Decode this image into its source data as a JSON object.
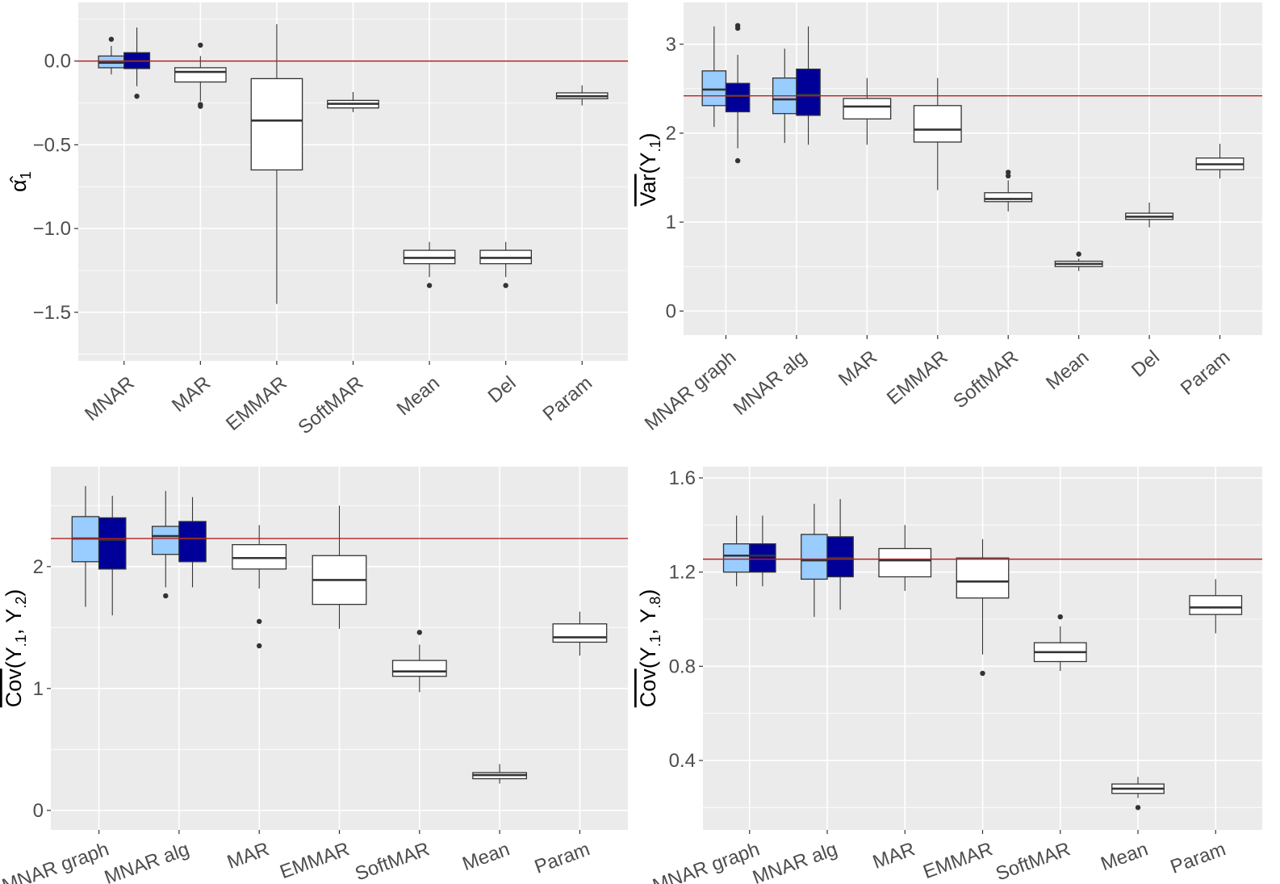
{
  "colors": {
    "panel_bg": "#ebebeb",
    "grid": "#ffffff",
    "reference_line": "#b22222",
    "mnar_light": "#99ccff",
    "mnar_dark": "#000099",
    "other": "#ffffff",
    "box_stroke": "#333333"
  },
  "chart_data": [
    {
      "type": "boxplot",
      "ylabel": [
        {
          "t": "α̂"
        },
        {
          "t": "1",
          "sub": true
        }
      ],
      "ylim": [
        -1.79,
        0.35
      ],
      "yticks": [
        0.0,
        -0.5,
        -1.0,
        -1.5
      ],
      "ytick_labels": [
        "0.0",
        "−0.5",
        "−1.0",
        "−1.5"
      ],
      "categories": [
        "MNAR",
        "MAR",
        "EMMAR",
        "SoftMAR",
        "Mean",
        "Del",
        "Param"
      ],
      "reference_line": 0.0,
      "grid": true,
      "boxes": [
        {
          "category": "MNAR",
          "fill": "#99ccff",
          "q1": -0.04,
          "median": -0.01,
          "q3": 0.03,
          "whisker_low": -0.08,
          "whisker_high": 0.09,
          "outliers": [
            0.13
          ]
        },
        {
          "category": "MNAR",
          "fill": "#000099",
          "q1": -0.045,
          "median": 0.0,
          "q3": 0.05,
          "whisker_low": -0.15,
          "whisker_high": 0.2,
          "outliers": [
            -0.21
          ]
        },
        {
          "category": "MAR",
          "fill": "#ffffff",
          "q1": -0.125,
          "median": -0.065,
          "q3": -0.04,
          "whisker_low": -0.24,
          "whisker_high": 0.03,
          "outliers": [
            0.095,
            -0.26,
            -0.27
          ]
        },
        {
          "category": "EMMAR",
          "fill": "#ffffff",
          "q1": -0.65,
          "median": -0.355,
          "q3": -0.105,
          "whisker_low": -1.45,
          "whisker_high": 0.22,
          "outliers": []
        },
        {
          "category": "SoftMAR",
          "fill": "#ffffff",
          "q1": -0.28,
          "median": -0.255,
          "q3": -0.235,
          "whisker_low": -0.305,
          "whisker_high": -0.185,
          "outliers": []
        },
        {
          "category": "Mean",
          "fill": "#ffffff",
          "q1": -1.21,
          "median": -1.175,
          "q3": -1.13,
          "whisker_low": -1.29,
          "whisker_high": -1.08,
          "outliers": [
            -1.34
          ]
        },
        {
          "category": "Del",
          "fill": "#ffffff",
          "q1": -1.21,
          "median": -1.175,
          "q3": -1.13,
          "whisker_low": -1.29,
          "whisker_high": -1.08,
          "outliers": [
            -1.34
          ]
        },
        {
          "category": "Param",
          "fill": "#ffffff",
          "q1": -0.225,
          "median": -0.21,
          "q3": -0.19,
          "whisker_low": -0.265,
          "whisker_high": -0.145,
          "outliers": []
        }
      ]
    },
    {
      "type": "boxplot",
      "ylabel": [
        {
          "t": "Var",
          "hat": true
        },
        {
          "t": "(Y"
        },
        {
          "t": ".1",
          "sub": true
        },
        {
          "t": ")"
        }
      ],
      "ylim": [
        -0.27,
        3.47
      ],
      "yticks": [
        0,
        1,
        2,
        3
      ],
      "ytick_labels": [
        "0",
        "1",
        "2",
        "3"
      ],
      "categories": [
        "MNAR graph",
        "MNAR alg",
        "MAR",
        "EMMAR",
        "SoftMAR",
        "Mean",
        "Del",
        "Param"
      ],
      "reference_line": 2.42,
      "grid": true,
      "boxes": [
        {
          "category": "MNAR graph",
          "fill": "#99ccff",
          "q1": 2.31,
          "median": 2.49,
          "q3": 2.7,
          "whisker_low": 2.07,
          "whisker_high": 3.2,
          "outliers": []
        },
        {
          "category": "MNAR graph",
          "fill": "#000099",
          "q1": 2.24,
          "median": 2.42,
          "q3": 2.56,
          "whisker_low": 1.83,
          "whisker_high": 2.88,
          "outliers": [
            1.69,
            3.18,
            3.21
          ]
        },
        {
          "category": "MNAR alg",
          "fill": "#99ccff",
          "q1": 2.22,
          "median": 2.38,
          "q3": 2.62,
          "whisker_low": 1.89,
          "whisker_high": 2.95,
          "outliers": []
        },
        {
          "category": "MNAR alg",
          "fill": "#000099",
          "q1": 2.2,
          "median": 2.43,
          "q3": 2.72,
          "whisker_low": 1.87,
          "whisker_high": 3.2,
          "outliers": []
        },
        {
          "category": "MAR",
          "fill": "#ffffff",
          "q1": 2.16,
          "median": 2.3,
          "q3": 2.39,
          "whisker_low": 1.87,
          "whisker_high": 2.62,
          "outliers": []
        },
        {
          "category": "EMMAR",
          "fill": "#ffffff",
          "q1": 1.9,
          "median": 2.04,
          "q3": 2.31,
          "whisker_low": 1.36,
          "whisker_high": 2.62,
          "outliers": []
        },
        {
          "category": "SoftMAR",
          "fill": "#ffffff",
          "q1": 1.23,
          "median": 1.26,
          "q3": 1.33,
          "whisker_low": 1.12,
          "whisker_high": 1.47,
          "outliers": [
            1.52,
            1.56
          ]
        },
        {
          "category": "Mean",
          "fill": "#ffffff",
          "q1": 0.5,
          "median": 0.53,
          "q3": 0.56,
          "whisker_low": 0.45,
          "whisker_high": 0.59,
          "outliers": [
            0.64
          ]
        },
        {
          "category": "Del",
          "fill": "#ffffff",
          "q1": 1.03,
          "median": 1.06,
          "q3": 1.1,
          "whisker_low": 0.94,
          "whisker_high": 1.22,
          "outliers": []
        },
        {
          "category": "Param",
          "fill": "#ffffff",
          "q1": 1.59,
          "median": 1.65,
          "q3": 1.72,
          "whisker_low": 1.49,
          "whisker_high": 1.88,
          "outliers": []
        }
      ]
    },
    {
      "type": "boxplot",
      "ylabel": [
        {
          "t": "Cov",
          "hat": true
        },
        {
          "t": "(Y"
        },
        {
          "t": ".1",
          "sub": true
        },
        {
          "t": ", Y"
        },
        {
          "t": ".2",
          "sub": true
        },
        {
          "t": ")"
        }
      ],
      "ylim": [
        -0.16,
        2.82
      ],
      "yticks": [
        0,
        1,
        2
      ],
      "ytick_labels": [
        "0",
        "1",
        "2"
      ],
      "categories": [
        "MNAR graph",
        "MNAR alg",
        "MAR",
        "EMMAR",
        "SoftMAR",
        "Mean",
        "Param"
      ],
      "reference_line": 2.23,
      "grid": true,
      "boxes": [
        {
          "category": "MNAR graph",
          "fill": "#99ccff",
          "q1": 2.04,
          "median": 2.23,
          "q3": 2.41,
          "whisker_low": 1.67,
          "whisker_high": 2.66,
          "outliers": []
        },
        {
          "category": "MNAR graph",
          "fill": "#000099",
          "q1": 1.98,
          "median": 2.22,
          "q3": 2.4,
          "whisker_low": 1.6,
          "whisker_high": 2.58,
          "outliers": []
        },
        {
          "category": "MNAR alg",
          "fill": "#99ccff",
          "q1": 2.1,
          "median": 2.25,
          "q3": 2.33,
          "whisker_low": 1.83,
          "whisker_high": 2.62,
          "outliers": [
            1.76
          ]
        },
        {
          "category": "MNAR alg",
          "fill": "#000099",
          "q1": 2.04,
          "median": 2.23,
          "q3": 2.37,
          "whisker_low": 1.83,
          "whisker_high": 2.57,
          "outliers": []
        },
        {
          "category": "MAR",
          "fill": "#ffffff",
          "q1": 1.98,
          "median": 2.07,
          "q3": 2.18,
          "whisker_low": 1.82,
          "whisker_high": 2.34,
          "outliers": [
            1.55,
            1.35
          ]
        },
        {
          "category": "EMMAR",
          "fill": "#ffffff",
          "q1": 1.69,
          "median": 1.89,
          "q3": 2.09,
          "whisker_low": 1.49,
          "whisker_high": 2.5,
          "outliers": []
        },
        {
          "category": "SoftMAR",
          "fill": "#ffffff",
          "q1": 1.1,
          "median": 1.14,
          "q3": 1.23,
          "whisker_low": 0.97,
          "whisker_high": 1.36,
          "outliers": [
            1.46
          ]
        },
        {
          "category": "Mean",
          "fill": "#ffffff",
          "q1": 0.26,
          "median": 0.29,
          "q3": 0.31,
          "whisker_low": 0.22,
          "whisker_high": 0.38,
          "outliers": []
        },
        {
          "category": "Param",
          "fill": "#ffffff",
          "q1": 1.38,
          "median": 1.42,
          "q3": 1.53,
          "whisker_low": 1.27,
          "whisker_high": 1.63,
          "outliers": []
        }
      ]
    },
    {
      "type": "boxplot",
      "ylabel": [
        {
          "t": "Cov",
          "hat": true
        },
        {
          "t": "(Y"
        },
        {
          "t": ".1",
          "sub": true
        },
        {
          "t": ", Y"
        },
        {
          "t": ".8",
          "sub": true
        },
        {
          "t": ")"
        }
      ],
      "ylim": [
        0.105,
        1.648
      ],
      "yticks": [
        0.4,
        0.8,
        1.2,
        1.6
      ],
      "ytick_labels": [
        "0.4",
        "0.8",
        "1.2",
        "1.6"
      ],
      "categories": [
        "MNAR graph",
        "MNAR alg",
        "MAR",
        "EMMAR",
        "SoftMAR",
        "Mean",
        "Param"
      ],
      "reference_line": 1.255,
      "grid": true,
      "boxes": [
        {
          "category": "MNAR graph",
          "fill": "#99ccff",
          "q1": 1.2,
          "median": 1.27,
          "q3": 1.32,
          "whisker_low": 1.14,
          "whisker_high": 1.44,
          "outliers": []
        },
        {
          "category": "MNAR graph",
          "fill": "#000099",
          "q1": 1.2,
          "median": 1.27,
          "q3": 1.32,
          "whisker_low": 1.14,
          "whisker_high": 1.44,
          "outliers": []
        },
        {
          "category": "MNAR alg",
          "fill": "#99ccff",
          "q1": 1.17,
          "median": 1.25,
          "q3": 1.36,
          "whisker_low": 1.01,
          "whisker_high": 1.49,
          "outliers": []
        },
        {
          "category": "MNAR alg",
          "fill": "#000099",
          "q1": 1.18,
          "median": 1.26,
          "q3": 1.35,
          "whisker_low": 1.04,
          "whisker_high": 1.51,
          "outliers": []
        },
        {
          "category": "MAR",
          "fill": "#ffffff",
          "q1": 1.18,
          "median": 1.25,
          "q3": 1.3,
          "whisker_low": 1.12,
          "whisker_high": 1.4,
          "outliers": []
        },
        {
          "category": "EMMAR",
          "fill": "#ffffff",
          "q1": 1.09,
          "median": 1.16,
          "q3": 1.26,
          "whisker_low": 0.85,
          "whisker_high": 1.34,
          "outliers": [
            0.77
          ]
        },
        {
          "category": "SoftMAR",
          "fill": "#ffffff",
          "q1": 0.82,
          "median": 0.86,
          "q3": 0.9,
          "whisker_low": 0.78,
          "whisker_high": 0.97,
          "outliers": [
            1.01
          ]
        },
        {
          "category": "Mean",
          "fill": "#ffffff",
          "q1": 0.26,
          "median": 0.28,
          "q3": 0.3,
          "whisker_low": 0.24,
          "whisker_high": 0.33,
          "outliers": [
            0.2
          ]
        },
        {
          "category": "Param",
          "fill": "#ffffff",
          "q1": 1.02,
          "median": 1.05,
          "q3": 1.1,
          "whisker_low": 0.94,
          "whisker_high": 1.17,
          "outliers": []
        }
      ]
    }
  ]
}
